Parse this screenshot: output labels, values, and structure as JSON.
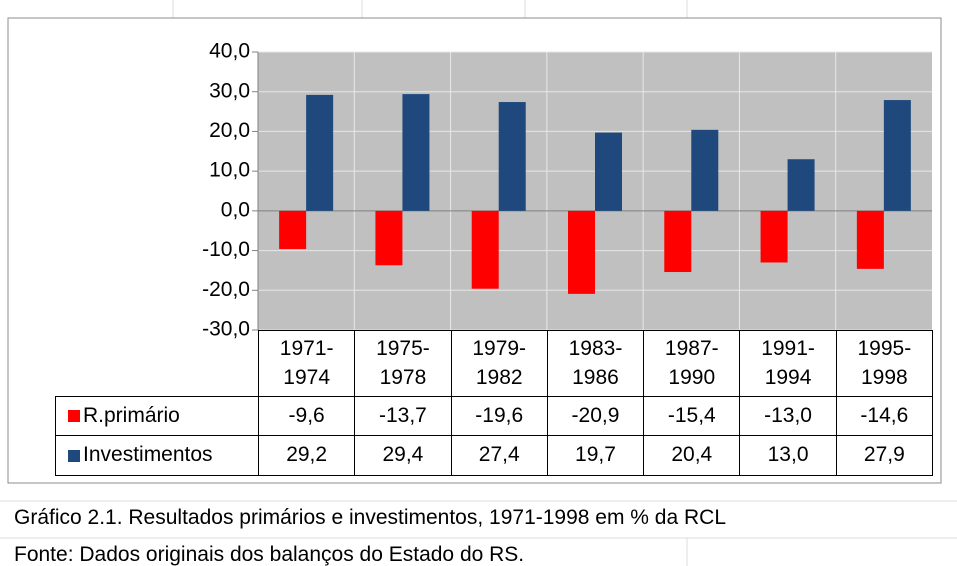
{
  "chart_data": {
    "type": "bar",
    "categories": [
      "1971-1974",
      "1975-1978",
      "1979-1982",
      "1983-1986",
      "1987-1990",
      "1991-1994",
      "1995-1998"
    ],
    "series": [
      {
        "name": "R.primário",
        "color": "#ff0000",
        "values": [
          -9.6,
          -13.7,
          -19.6,
          -20.9,
          -15.4,
          -13.0,
          -14.6
        ],
        "value_labels": [
          "-9,6",
          "-13,7",
          "-19,6",
          "-20,9",
          "-15,4",
          "-13,0",
          "-14,6"
        ]
      },
      {
        "name": "Investimentos",
        "color": "#1f497d",
        "values": [
          29.2,
          29.4,
          27.4,
          19.7,
          20.4,
          13.0,
          27.9
        ],
        "value_labels": [
          "29,2",
          "29,4",
          "27,4",
          "19,7",
          "20,4",
          "13,0",
          "27,9"
        ]
      }
    ],
    "ylim": [
      -30,
      40
    ],
    "yticks": [
      {
        "value": -30,
        "label": "-30,0"
      },
      {
        "value": -20,
        "label": "-20,0"
      },
      {
        "value": -10,
        "label": "-10,0"
      },
      {
        "value": 0,
        "label": "0,0"
      },
      {
        "value": 10,
        "label": "10,0"
      },
      {
        "value": 20,
        "label": "20,0"
      },
      {
        "value": 30,
        "label": "30,0"
      },
      {
        "value": 40,
        "label": "40,0"
      }
    ],
    "grid": true,
    "caption": "Gráfico 2.1. Resultados primários e investimentos, 1971-1998 em % da RCL",
    "source": "Fonte: Dados originais dos balanços do Estado do RS."
  }
}
